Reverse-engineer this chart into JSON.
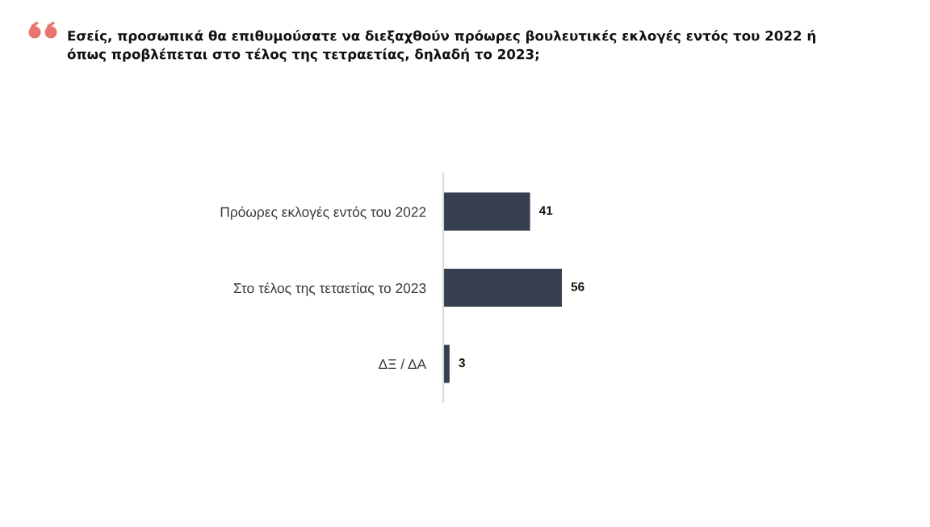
{
  "chart_data": {
    "type": "bar",
    "orientation": "horizontal",
    "title": "Εσείς, προσωπικά θα επιθυμούσατε να διεξαχθούν πρόωρες βουλευτικές εκλογές εντός του 2022 ή\nόπως προβλέπεται στο τέλος της τετραετίας, δηλαδή το 2023;",
    "categories": [
      "Πρόωρες εκλογές εντός του 2022",
      "Στο τέλος της τεταετίας το 2023",
      "ΔΞ / ΔΑ"
    ],
    "values": [
      41,
      56,
      3
    ],
    "color": "#353f4f",
    "data_labels": true,
    "tick_labels": "y"
  }
}
